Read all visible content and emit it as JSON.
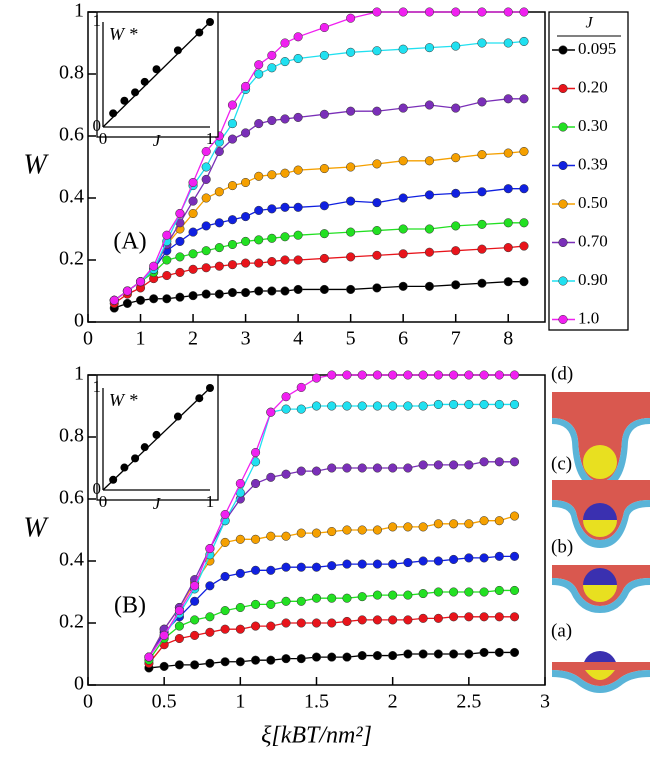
{
  "chart_data": [
    {
      "type": "line",
      "panel_label": "(A)",
      "ylabel": "W",
      "xlim": [
        0,
        8.7
      ],
      "ylim": [
        0,
        1
      ],
      "xticks": [
        0,
        1,
        2,
        3,
        4,
        5,
        6,
        7,
        8
      ],
      "yticks": [
        0,
        0.2,
        0.4,
        0.6,
        0.8,
        1
      ],
      "legend": "outside-right",
      "legend_title": "J",
      "x": [
        0.5,
        0.75,
        1,
        1.25,
        1.5,
        1.75,
        2,
        2.25,
        2.5,
        2.75,
        3,
        3.25,
        3.5,
        3.75,
        4,
        4.5,
        5,
        5.5,
        6,
        6.5,
        7,
        7.5,
        8,
        8.3
      ],
      "series": [
        {
          "name": "0.095",
          "color": "#000000",
          "values": [
            0.045,
            0.06,
            0.07,
            0.075,
            0.075,
            0.08,
            0.085,
            0.09,
            0.09,
            0.095,
            0.095,
            0.1,
            0.1,
            0.1,
            0.105,
            0.105,
            0.105,
            0.11,
            0.115,
            0.115,
            0.12,
            0.125,
            0.13,
            0.13
          ]
        },
        {
          "name": "0.20",
          "color": "#e8141b",
          "values": [
            0.06,
            0.09,
            0.11,
            0.14,
            0.15,
            0.16,
            0.17,
            0.175,
            0.18,
            0.185,
            0.19,
            0.19,
            0.195,
            0.2,
            0.2,
            0.205,
            0.21,
            0.215,
            0.22,
            0.225,
            0.23,
            0.235,
            0.24,
            0.245
          ]
        },
        {
          "name": "0.30",
          "color": "#22e022",
          "values": [
            0.07,
            0.1,
            0.13,
            0.16,
            0.2,
            0.21,
            0.22,
            0.23,
            0.24,
            0.25,
            0.26,
            0.265,
            0.27,
            0.275,
            0.28,
            0.285,
            0.29,
            0.295,
            0.3,
            0.3,
            0.31,
            0.315,
            0.32,
            0.32
          ]
        },
        {
          "name": "0.39",
          "color": "#1020e0",
          "values": [
            0.07,
            0.1,
            0.13,
            0.17,
            0.23,
            0.26,
            0.29,
            0.31,
            0.32,
            0.33,
            0.34,
            0.36,
            0.365,
            0.37,
            0.37,
            0.375,
            0.39,
            0.385,
            0.4,
            0.41,
            0.415,
            0.42,
            0.43,
            0.43
          ]
        },
        {
          "name": "0.50",
          "color": "#f5a000",
          "values": [
            0.07,
            0.1,
            0.13,
            0.17,
            0.25,
            0.3,
            0.35,
            0.4,
            0.42,
            0.44,
            0.45,
            0.47,
            0.475,
            0.48,
            0.49,
            0.495,
            0.5,
            0.51,
            0.52,
            0.52,
            0.53,
            0.54,
            0.545,
            0.55
          ]
        },
        {
          "name": "0.70",
          "color": "#7a2fb8",
          "values": [
            0.07,
            0.1,
            0.13,
            0.17,
            0.25,
            0.32,
            0.39,
            0.46,
            0.55,
            0.59,
            0.61,
            0.64,
            0.65,
            0.655,
            0.66,
            0.67,
            0.68,
            0.68,
            0.69,
            0.7,
            0.69,
            0.71,
            0.72,
            0.72
          ]
        },
        {
          "name": "0.90",
          "color": "#20e0f0",
          "values": [
            0.07,
            0.1,
            0.13,
            0.17,
            0.26,
            0.35,
            0.44,
            0.5,
            0.58,
            0.64,
            0.75,
            0.8,
            0.82,
            0.84,
            0.85,
            0.86,
            0.87,
            0.875,
            0.88,
            0.885,
            0.89,
            0.9,
            0.9,
            0.905
          ]
        },
        {
          "name": "1.0",
          "color": "#f020f0",
          "values": [
            0.07,
            0.1,
            0.13,
            0.18,
            0.28,
            0.35,
            0.45,
            0.55,
            0.6,
            0.7,
            0.76,
            0.83,
            0.86,
            0.9,
            0.92,
            0.95,
            0.98,
            1,
            1,
            1,
            1,
            1,
            1,
            1
          ]
        }
      ],
      "inset": {
        "xlabel": "J",
        "ylabel": "W *",
        "xlim": [
          0,
          1
        ],
        "ylim": [
          0,
          1
        ],
        "xticks": [
          0,
          1
        ],
        "yticks": [
          0,
          1
        ],
        "x": [
          0.095,
          0.2,
          0.3,
          0.39,
          0.5,
          0.7,
          0.9,
          1.0
        ],
        "values": [
          0.13,
          0.25,
          0.33,
          0.43,
          0.55,
          0.73,
          0.9,
          1.0
        ]
      }
    },
    {
      "type": "line",
      "panel_label": "(B)",
      "ylabel": "W",
      "xlabel": "ξ[kBT/nm²]",
      "xlim": [
        0,
        3
      ],
      "ylim": [
        0,
        1
      ],
      "xticks": [
        0,
        0.5,
        1,
        1.5,
        2,
        2.5,
        3
      ],
      "yticks": [
        0,
        0.2,
        0.4,
        0.6,
        0.8,
        1
      ],
      "x": [
        0.4,
        0.5,
        0.6,
        0.7,
        0.8,
        0.9,
        1.0,
        1.1,
        1.2,
        1.3,
        1.4,
        1.5,
        1.6,
        1.7,
        1.8,
        1.9,
        2.0,
        2.1,
        2.2,
        2.3,
        2.4,
        2.5,
        2.6,
        2.7,
        2.8
      ],
      "series": [
        {
          "color": "#000000",
          "values": [
            0.055,
            0.06,
            0.065,
            0.065,
            0.07,
            0.075,
            0.075,
            0.08,
            0.08,
            0.085,
            0.085,
            0.09,
            0.09,
            0.09,
            0.095,
            0.095,
            0.095,
            0.1,
            0.1,
            0.1,
            0.1,
            0.1,
            0.105,
            0.105,
            0.105
          ]
        },
        {
          "color": "#e8141b",
          "values": [
            0.07,
            0.13,
            0.15,
            0.16,
            0.17,
            0.18,
            0.18,
            0.19,
            0.19,
            0.2,
            0.2,
            0.2,
            0.2,
            0.205,
            0.21,
            0.21,
            0.21,
            0.21,
            0.215,
            0.215,
            0.22,
            0.22,
            0.22,
            0.22,
            0.22
          ]
        },
        {
          "color": "#22e022",
          "values": [
            0.08,
            0.15,
            0.19,
            0.21,
            0.22,
            0.24,
            0.25,
            0.26,
            0.26,
            0.27,
            0.27,
            0.28,
            0.28,
            0.28,
            0.285,
            0.29,
            0.29,
            0.29,
            0.295,
            0.3,
            0.3,
            0.3,
            0.3,
            0.305,
            0.305
          ]
        },
        {
          "color": "#1020e0",
          "values": [
            0.09,
            0.17,
            0.22,
            0.27,
            0.32,
            0.35,
            0.36,
            0.37,
            0.37,
            0.38,
            0.38,
            0.38,
            0.385,
            0.39,
            0.39,
            0.39,
            0.39,
            0.395,
            0.4,
            0.4,
            0.405,
            0.41,
            0.41,
            0.415,
            0.415
          ]
        },
        {
          "color": "#f5a000",
          "values": [
            0.09,
            0.18,
            0.25,
            0.33,
            0.4,
            0.46,
            0.47,
            0.47,
            0.48,
            0.48,
            0.49,
            0.49,
            0.495,
            0.5,
            0.5,
            0.5,
            0.51,
            0.51,
            0.51,
            0.52,
            0.52,
            0.52,
            0.53,
            0.53,
            0.545
          ]
        },
        {
          "color": "#7a2fb8",
          "values": [
            0.09,
            0.18,
            0.25,
            0.34,
            0.44,
            0.53,
            0.6,
            0.65,
            0.67,
            0.68,
            0.69,
            0.69,
            0.7,
            0.7,
            0.7,
            0.7,
            0.7,
            0.7,
            0.71,
            0.71,
            0.71,
            0.71,
            0.72,
            0.72,
            0.72
          ]
        },
        {
          "color": "#20e0f0",
          "values": [
            0.09,
            0.16,
            0.23,
            0.31,
            0.42,
            0.53,
            0.62,
            0.72,
            0.88,
            0.89,
            0.89,
            0.9,
            0.9,
            0.9,
            0.9,
            0.9,
            0.9,
            0.9,
            0.9,
            0.905,
            0.905,
            0.905,
            0.905,
            0.905,
            0.905
          ]
        },
        {
          "color": "#f020f0",
          "values": [
            0.09,
            0.16,
            0.24,
            0.32,
            0.44,
            0.55,
            0.65,
            0.75,
            0.88,
            0.93,
            0.96,
            0.99,
            1,
            1,
            1,
            1,
            1,
            1,
            1,
            1,
            1,
            1,
            1,
            1,
            1
          ]
        }
      ],
      "inset": {
        "xlabel": "J",
        "ylabel": "W *",
        "xlim": [
          0,
          1
        ],
        "ylim": [
          0,
          1
        ],
        "xticks": [
          0,
          1
        ],
        "yticks": [
          0,
          1
        ],
        "x": [
          0.095,
          0.2,
          0.3,
          0.39,
          0.5,
          0.7,
          0.9,
          1.0
        ],
        "values": [
          0.1,
          0.22,
          0.31,
          0.42,
          0.54,
          0.72,
          0.9,
          1.0
        ]
      }
    }
  ],
  "side_images": [
    "(d)",
    "(c)",
    "(b)",
    "(a)"
  ]
}
